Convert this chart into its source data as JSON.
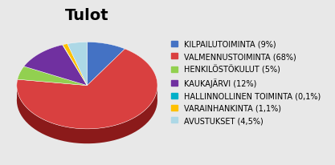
{
  "title": "Tulot",
  "labels": [
    "KILPAILUTOIMINTA (9%)",
    "VALMENNUSTOIMINTA (68%)",
    "HENKILÖSTÖKULUT (5%)",
    "KAUKAJÄRVI (12%)",
    "HALLINNOLLINEN TOIMINTA (0,1%)",
    "VARAINHANKINTA (1,1%)",
    "AVUSTUKSET (4,5%)"
  ],
  "values": [
    9,
    68,
    5,
    12,
    0.1,
    1.1,
    4.5
  ],
  "colors": [
    "#4472C4",
    "#D94040",
    "#92D050",
    "#7030A0",
    "#00B0C8",
    "#FFC000",
    "#ADD8E6"
  ],
  "dark_colors": [
    "#2E4F8A",
    "#8B1A1A",
    "#5A8A20",
    "#4A1A6A",
    "#006080",
    "#B08000",
    "#6090A0"
  ],
  "startangle": 90,
  "title_fontsize": 14,
  "legend_fontsize": 7,
  "bg_color": "#E8E8E8"
}
